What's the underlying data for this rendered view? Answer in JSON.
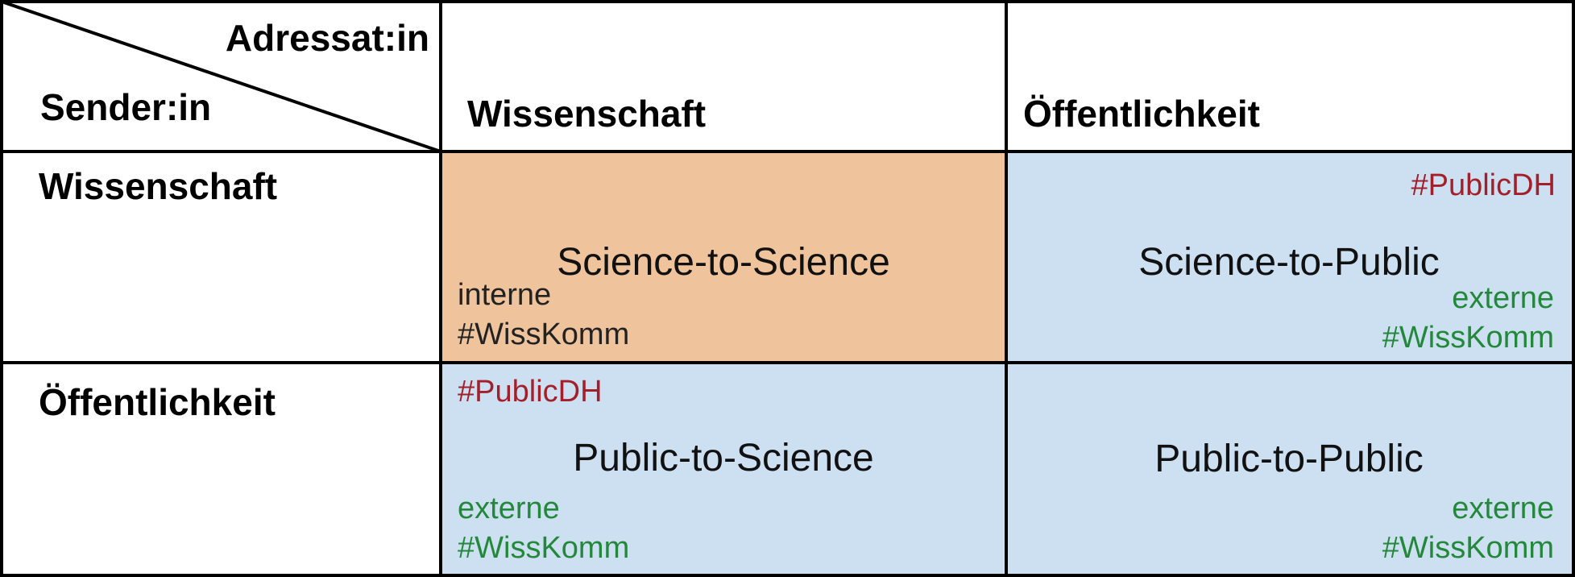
{
  "corner": {
    "adressat": "Adressat:in",
    "sender": "Sender:in"
  },
  "columns": [
    "Wissenschaft",
    "Öffentlichkeit"
  ],
  "rows": [
    "Wissenschaft",
    "Öffentlichkeit"
  ],
  "cells": {
    "s2s": {
      "title": "Science-to-Science",
      "tag1": "interne",
      "tag2": "#WissKomm"
    },
    "s2p": {
      "hashtag": "#PublicDH",
      "title": "Science-to-Public",
      "tag1": "externe",
      "tag2": "#WissKomm"
    },
    "p2s": {
      "hashtag": "#PublicDH",
      "title": "Public-to-Science",
      "tag1": "externe",
      "tag2": "#WissKomm"
    },
    "p2p": {
      "title": "Public-to-Public",
      "tag1": "externe",
      "tag2": "#WissKomm"
    }
  },
  "colors": {
    "orange": "#efc39c",
    "blue": "#cce0f2",
    "red": "#a3202a",
    "green": "#23883a"
  }
}
